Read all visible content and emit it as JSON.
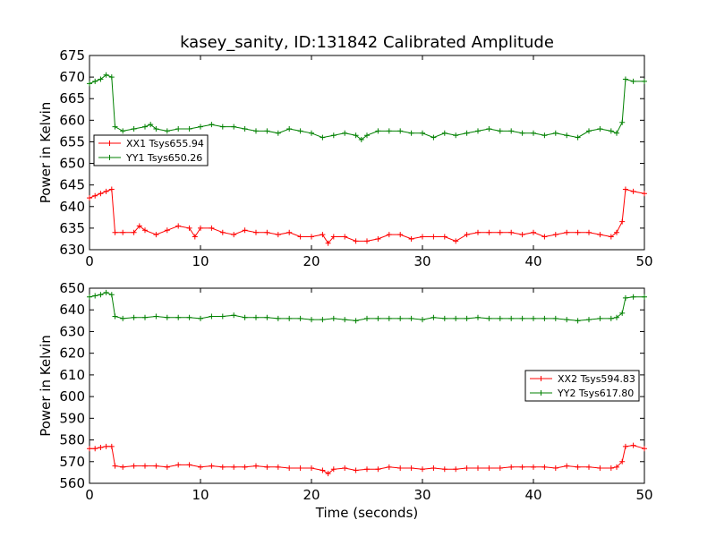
{
  "chart_data": {
    "title": "kasey_sanity, ID:131842 Calibrated Amplitude",
    "xlabel": "Time (seconds)",
    "panels": [
      {
        "type": "line",
        "ylabel": "Power in Kelvin",
        "xlim": [
          0,
          50
        ],
        "ylim": [
          630,
          675
        ],
        "xticks": [
          "0",
          "10",
          "20",
          "30",
          "40",
          "50"
        ],
        "yticks": [
          "630",
          "635",
          "640",
          "645",
          "650",
          "655",
          "660",
          "665",
          "670",
          "675"
        ],
        "legend_position": "center-left",
        "series": [
          {
            "name": "XX1 Tsys655.94",
            "color": "#ff0000",
            "x": [
              0,
              0.5,
              1,
              1.5,
              2,
              2.3,
              3,
              4,
              4.5,
              5,
              6,
              7,
              8,
              9,
              9.5,
              10,
              11,
              12,
              13,
              14,
              15,
              16,
              17,
              18,
              19,
              20,
              21,
              21.5,
              22,
              23,
              24,
              25,
              26,
              27,
              28,
              29,
              30,
              31,
              32,
              33,
              34,
              35,
              36,
              37,
              38,
              39,
              40,
              41,
              42,
              43,
              44,
              45,
              46,
              47,
              47.5,
              48,
              48.3,
              49,
              50
            ],
            "y": [
              642,
              642.5,
              643,
              643.5,
              644,
              634,
              634,
              634,
              635.5,
              634.5,
              633.5,
              634.5,
              635.5,
              635,
              633,
              635,
              635,
              634,
              633.5,
              634.5,
              634,
              634,
              633.5,
              634,
              633,
              633,
              633.5,
              631.5,
              633,
              633,
              632,
              632,
              632.5,
              633.5,
              633.5,
              632.5,
              633,
              633,
              633,
              632,
              633.5,
              634,
              634,
              634,
              634,
              633.5,
              634,
              633,
              633.5,
              634,
              634,
              634,
              633.5,
              633,
              634,
              636.5,
              644,
              643.5,
              643
            ]
          },
          {
            "name": "YY1 Tsys650.26",
            "color": "#008000",
            "x": [
              0,
              0.5,
              1,
              1.5,
              2,
              2.3,
              3,
              4,
              5,
              5.5,
              6,
              7,
              8,
              9,
              10,
              11,
              12,
              13,
              14,
              15,
              16,
              17,
              18,
              19,
              20,
              21,
              22,
              23,
              24,
              24.5,
              25,
              26,
              27,
              28,
              29,
              30,
              31,
              32,
              33,
              34,
              35,
              36,
              37,
              38,
              39,
              40,
              41,
              42,
              43,
              44,
              45,
              46,
              47,
              47.5,
              48,
              48.3,
              49,
              50
            ],
            "y": [
              668.5,
              669,
              669.5,
              670.5,
              670,
              658.5,
              657.5,
              658,
              658.5,
              659,
              658,
              657.5,
              658,
              658,
              658.5,
              659,
              658.5,
              658.5,
              658,
              657.5,
              657.5,
              657,
              658,
              657.5,
              657,
              656,
              656.5,
              657,
              656.5,
              655.5,
              656.5,
              657.5,
              657.5,
              657.5,
              657,
              657,
              656,
              657,
              656.5,
              657,
              657.5,
              658,
              657.5,
              657.5,
              657,
              657,
              656.5,
              657,
              656.5,
              656,
              657.5,
              658,
              657.5,
              657,
              659.5,
              669.5,
              669,
              669
            ]
          }
        ]
      },
      {
        "type": "line",
        "ylabel": "Power in Kelvin",
        "xlim": [
          0,
          50
        ],
        "ylim": [
          560,
          650
        ],
        "xticks": [
          "0",
          "10",
          "20",
          "30",
          "40",
          "50"
        ],
        "yticks": [
          "560",
          "570",
          "580",
          "590",
          "600",
          "610",
          "620",
          "630",
          "640",
          "650"
        ],
        "legend_position": "center-right",
        "series": [
          {
            "name": "XX2 Tsys594.83",
            "color": "#ff0000",
            "x": [
              0,
              0.5,
              1,
              1.5,
              2,
              2.3,
              3,
              4,
              5,
              6,
              7,
              8,
              9,
              10,
              11,
              12,
              13,
              14,
              15,
              16,
              17,
              18,
              19,
              20,
              21,
              21.5,
              22,
              23,
              24,
              25,
              26,
              27,
              28,
              29,
              30,
              31,
              32,
              33,
              34,
              35,
              36,
              37,
              38,
              39,
              40,
              41,
              42,
              43,
              44,
              45,
              46,
              47,
              47.5,
              48,
              48.3,
              49,
              50
            ],
            "y": [
              576,
              576,
              576.5,
              577,
              577,
              568,
              567.5,
              568,
              568,
              568,
              567.5,
              568.5,
              568.5,
              567.5,
              568,
              567.5,
              567.5,
              567.5,
              568,
              567.5,
              567.5,
              567,
              567,
              567,
              566,
              564.5,
              566.5,
              567,
              566,
              566.5,
              566.5,
              567.5,
              567,
              567,
              566.5,
              567,
              566.5,
              566.5,
              567,
              567,
              567,
              567,
              567.5,
              567.5,
              567.5,
              567.5,
              567,
              568,
              567.5,
              567.5,
              567,
              567,
              567.5,
              570,
              577,
              577.5,
              576
            ]
          },
          {
            "name": "YY2 Tsys617.80",
            "color": "#008000",
            "x": [
              0,
              0.5,
              1,
              1.5,
              2,
              2.3,
              3,
              4,
              5,
              6,
              7,
              8,
              9,
              10,
              11,
              12,
              13,
              14,
              15,
              16,
              17,
              18,
              19,
              20,
              21,
              22,
              23,
              24,
              25,
              26,
              27,
              28,
              29,
              30,
              31,
              32,
              33,
              34,
              35,
              36,
              37,
              38,
              39,
              40,
              41,
              42,
              43,
              44,
              45,
              46,
              47,
              47.5,
              48,
              48.3,
              49,
              50
            ],
            "y": [
              646,
              646.5,
              647,
              648,
              647,
              637,
              636,
              636.5,
              636.5,
              637,
              636.5,
              636.5,
              636.5,
              636,
              637,
              637,
              637.5,
              636.5,
              636.5,
              636.5,
              636,
              636,
              636,
              635.5,
              635.5,
              636,
              635.5,
              635,
              636,
              636,
              636,
              636,
              636,
              635.5,
              636.5,
              636,
              636,
              636,
              636.5,
              636,
              636,
              636,
              636,
              636,
              636,
              636,
              635.5,
              635,
              635.5,
              636,
              636,
              636.5,
              638.5,
              645.5,
              646,
              646
            ]
          }
        ]
      }
    ]
  }
}
